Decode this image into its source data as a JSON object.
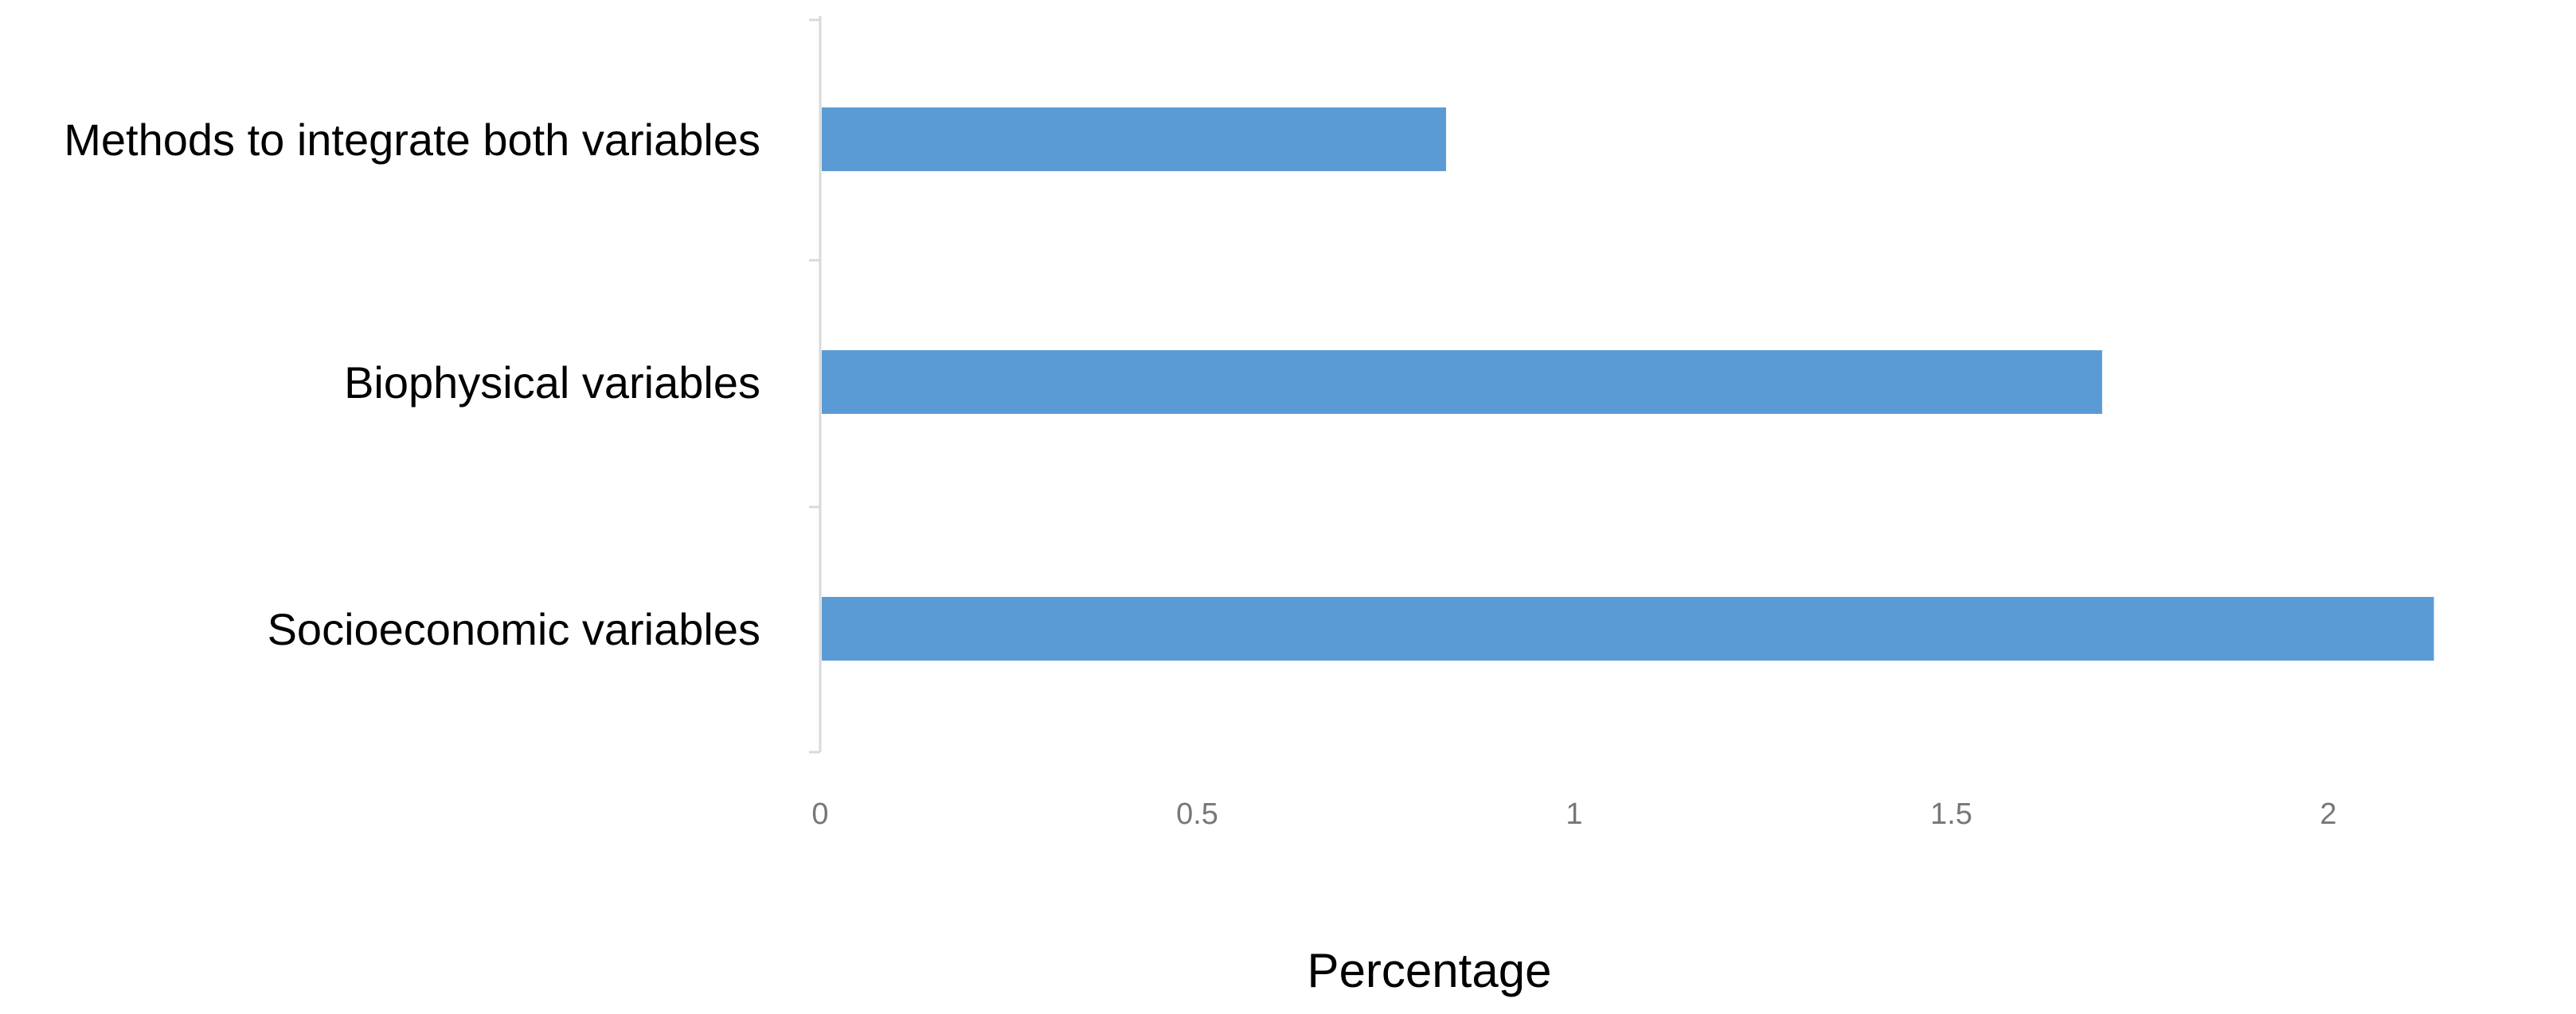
{
  "chart_data": {
    "type": "bar",
    "orientation": "horizontal",
    "title": "",
    "xlabel": "Percentage",
    "ylabel": "",
    "categories": [
      "Socioeconomic variables",
      "Biophysical variables",
      "Methods to integrate both variables"
    ],
    "values": [
      2.14,
      1.7,
      0.83
    ],
    "xlim": [
      0,
      2.3
    ],
    "xticks": [
      "0",
      "0.5",
      "1",
      "1.5",
      "2"
    ],
    "grid": false,
    "legend": "none",
    "bar_color": "#5B9BD5",
    "axis_color": "#D9D9D9"
  }
}
